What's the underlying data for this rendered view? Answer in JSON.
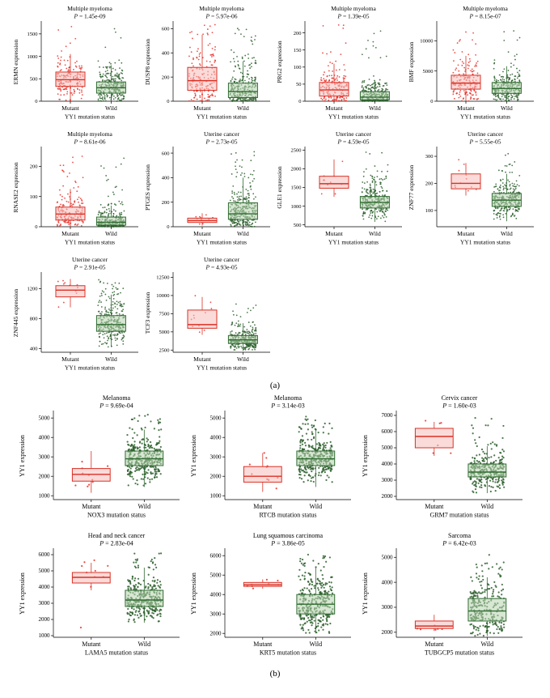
{
  "figure": {
    "panels": {
      "a": {
        "label": "(a)"
      },
      "b": {
        "label": "(b)"
      }
    }
  },
  "colors": {
    "mutant_stroke": "#d93025",
    "mutant_fill": "#f6beba",
    "mutant_point": "#e8312a",
    "wild_stroke": "#2f6b31",
    "wild_fill": "#b7d4ae",
    "wild_point": "#2d5f2d",
    "axis": "#000000"
  },
  "chart_data": [
    {
      "panel": "a",
      "type": "boxplot",
      "title": "Multiple myeloma",
      "p_label": "P = 1.45e-09",
      "ylabel": "ERMN expression",
      "xlabel": "YY1 mutation status",
      "categories": [
        "Mutant",
        "Wild"
      ],
      "ylim": [
        0,
        1750
      ],
      "yticks": [
        0,
        500,
        1000,
        1500
      ],
      "groups": [
        {
          "name": "Mutant",
          "n": 170,
          "low": 0,
          "q1": 330,
          "median": 480,
          "q3": 650,
          "high": 1050,
          "max": 1750
        },
        {
          "name": "Wild",
          "n": 270,
          "low": 0,
          "q1": 180,
          "median": 300,
          "q3": 430,
          "high": 800,
          "max": 1650
        }
      ]
    },
    {
      "panel": "a",
      "type": "boxplot",
      "title": "Multiple myeloma",
      "p_label": "P = 5.97e-06",
      "ylabel": "DUSP8 expression",
      "xlabel": "YY1 mutation status",
      "categories": [
        "Mutant",
        "Wild"
      ],
      "ylim": [
        0,
        650
      ],
      "yticks": [
        0,
        200,
        400,
        600
      ],
      "groups": [
        {
          "name": "Mutant",
          "n": 170,
          "low": 0,
          "q1": 90,
          "median": 170,
          "q3": 280,
          "high": 550,
          "max": 640
        },
        {
          "name": "Wild",
          "n": 270,
          "low": 0,
          "q1": 30,
          "median": 80,
          "q3": 150,
          "high": 330,
          "max": 620
        }
      ]
    },
    {
      "panel": "a",
      "type": "boxplot",
      "title": "Multiple myeloma",
      "p_label": "P = 1.39e-05",
      "ylabel": "PRG2 expression",
      "xlabel": "YY1 mutation status",
      "categories": [
        "Mutant",
        "Wild"
      ],
      "ylim": [
        0,
        230
      ],
      "yticks": [
        0,
        50,
        100,
        150,
        200
      ],
      "groups": [
        {
          "name": "Mutant",
          "n": 170,
          "low": 0,
          "q1": 15,
          "median": 33,
          "q3": 55,
          "high": 110,
          "max": 225
        },
        {
          "name": "Wild",
          "n": 270,
          "low": 0,
          "q1": 4,
          "median": 12,
          "q3": 28,
          "high": 60,
          "max": 215
        }
      ]
    },
    {
      "panel": "a",
      "type": "boxplot",
      "title": "Multiple myeloma",
      "p_label": "P = 8.15e-07",
      "ylabel": "BMF expression",
      "xlabel": "YY1 mutation status",
      "categories": [
        "Mutant",
        "Wild"
      ],
      "ylim": [
        0,
        13000
      ],
      "yticks": [
        0,
        5000,
        10000
      ],
      "groups": [
        {
          "name": "Mutant",
          "n": 170,
          "low": 0,
          "q1": 2000,
          "median": 3000,
          "q3": 4300,
          "high": 7500,
          "max": 12500
        },
        {
          "name": "Wild",
          "n": 270,
          "low": 0,
          "q1": 1300,
          "median": 2100,
          "q3": 3100,
          "high": 5800,
          "max": 12000
        }
      ]
    },
    {
      "panel": "a",
      "type": "boxplot",
      "title": "Multiple myeloma",
      "p_label": "P = 8.61e-06",
      "ylabel": "RNASE2 expression",
      "xlabel": "YY1 mutation status",
      "categories": [
        "Mutant",
        "Wild"
      ],
      "ylim": [
        0,
        260
      ],
      "yticks": [
        0,
        100,
        200
      ],
      "groups": [
        {
          "name": "Mutant",
          "n": 170,
          "low": 0,
          "q1": 22,
          "median": 42,
          "q3": 65,
          "high": 125,
          "max": 250
        },
        {
          "name": "Wild",
          "n": 270,
          "low": 0,
          "q1": 5,
          "median": 15,
          "q3": 32,
          "high": 70,
          "max": 245
        }
      ]
    },
    {
      "panel": "a",
      "type": "boxplot",
      "title": "Uterine cancer",
      "p_label": "P = 2.73e-05",
      "ylabel": "PTGES expression",
      "xlabel": "YY1 mutation status",
      "categories": [
        "Mutant",
        "Wild"
      ],
      "ylim": [
        0,
        640
      ],
      "yticks": [
        0,
        200,
        400,
        600
      ],
      "groups": [
        {
          "name": "Mutant",
          "n": 11,
          "low": 10,
          "q1": 35,
          "median": 50,
          "q3": 70,
          "high": 110,
          "max": 140
        },
        {
          "name": "Wild",
          "n": 300,
          "low": 0,
          "q1": 60,
          "median": 105,
          "q3": 195,
          "high": 400,
          "max": 620
        }
      ]
    },
    {
      "panel": "a",
      "type": "boxplot",
      "title": "Uterine cancer",
      "p_label": "P = 4.59e-05",
      "ylabel": "GLE1 expression",
      "xlabel": "YY1 mutation status",
      "categories": [
        "Mutant",
        "Wild"
      ],
      "ylim": [
        450,
        2550
      ],
      "yticks": [
        500,
        1000,
        1500,
        2000,
        2500
      ],
      "groups": [
        {
          "name": "Mutant",
          "n": 11,
          "low": 1250,
          "q1": 1480,
          "median": 1600,
          "q3": 1800,
          "high": 2250,
          "max": 2400
        },
        {
          "name": "Wild",
          "n": 300,
          "low": 580,
          "q1": 950,
          "median": 1100,
          "q3": 1260,
          "high": 1700,
          "max": 2450
        }
      ]
    },
    {
      "panel": "a",
      "type": "boxplot",
      "title": "Uterine cancer",
      "p_label": "P = 5.55e-05",
      "ylabel": "ZNF77 expression",
      "xlabel": "YY1 mutation status",
      "categories": [
        "Mutant",
        "Wild"
      ],
      "ylim": [
        40,
        330
      ],
      "yticks": [
        100,
        200,
        300
      ],
      "groups": [
        {
          "name": "Mutant",
          "n": 11,
          "low": 155,
          "q1": 180,
          "median": 200,
          "q3": 235,
          "high": 275,
          "max": 290
        },
        {
          "name": "Wild",
          "n": 300,
          "low": 60,
          "q1": 115,
          "median": 138,
          "q3": 163,
          "high": 235,
          "max": 320
        }
      ]
    },
    {
      "panel": "a",
      "type": "boxplot",
      "title": "Uterine cancer",
      "p_label": "P = 2.91e-05",
      "ylabel": "ZNF445 expression",
      "xlabel": "YY1 mutation status",
      "categories": [
        "Mutant",
        "Wild"
      ],
      "ylim": [
        350,
        1400
      ],
      "yticks": [
        400,
        800,
        1200
      ],
      "groups": [
        {
          "name": "Mutant",
          "n": 11,
          "low": 950,
          "q1": 1090,
          "median": 1180,
          "q3": 1240,
          "high": 1330,
          "max": 1350
        },
        {
          "name": "Wild",
          "n": 300,
          "low": 420,
          "q1": 630,
          "median": 720,
          "q3": 840,
          "high": 1120,
          "max": 1320
        }
      ]
    },
    {
      "panel": "a",
      "type": "boxplot",
      "title": "Uterine cancer",
      "p_label": "P = 4.93e-05",
      "ylabel": "TCF3 expression",
      "xlabel": "YY1 mutation status",
      "categories": [
        "Mutant",
        "Wild"
      ],
      "ylim": [
        2200,
        13000
      ],
      "yticks": [
        2500,
        5000,
        7500,
        10000,
        12500
      ],
      "groups": [
        {
          "name": "Mutant",
          "n": 11,
          "low": 4600,
          "q1": 5500,
          "median": 6000,
          "q3": 8000,
          "high": 9800,
          "max": 12500
        },
        {
          "name": "Wild",
          "n": 300,
          "low": 2400,
          "q1": 3400,
          "median": 3900,
          "q3": 4500,
          "high": 6200,
          "max": 9500
        }
      ]
    },
    {
      "panel": "b",
      "type": "boxplot",
      "title": "Melanoma",
      "p_label": "P = 9.69e-04",
      "ylabel": "YY1 expression",
      "xlabel": "NOX3 mutation status",
      "categories": [
        "Mutant",
        "Wild"
      ],
      "ylim": [
        800,
        5300
      ],
      "yticks": [
        1000,
        2000,
        3000,
        4000,
        5000
      ],
      "groups": [
        {
          "name": "Mutant",
          "n": 10,
          "low": 1150,
          "q1": 1750,
          "median": 2100,
          "q3": 2400,
          "high": 3300,
          "max": 3400
        },
        {
          "name": "Wild",
          "n": 340,
          "low": 1450,
          "q1": 2550,
          "median": 2900,
          "q3": 3300,
          "high": 4400,
          "max": 5200
        }
      ]
    },
    {
      "panel": "b",
      "type": "boxplot",
      "title": "Melanoma",
      "p_label": "P = 3.14e-03",
      "ylabel": "YY1 expression",
      "xlabel": "RTCB mutation status",
      "categories": [
        "Mutant",
        "Wild"
      ],
      "ylim": [
        800,
        5300
      ],
      "yticks": [
        1000,
        2000,
        3000,
        4000,
        5000
      ],
      "groups": [
        {
          "name": "Mutant",
          "n": 10,
          "low": 1200,
          "q1": 1700,
          "median": 2000,
          "q3": 2500,
          "high": 3200,
          "max": 3300
        },
        {
          "name": "Wild",
          "n": 340,
          "low": 1450,
          "q1": 2550,
          "median": 2900,
          "q3": 3300,
          "high": 4400,
          "max": 5200
        }
      ]
    },
    {
      "panel": "b",
      "type": "boxplot",
      "title": "Cervix cancer",
      "p_label": "P = 1.60e-03",
      "ylabel": "YY1 expression",
      "xlabel": "GRM7 mutation status",
      "categories": [
        "Mutant",
        "Wild"
      ],
      "ylim": [
        1800,
        7200
      ],
      "yticks": [
        2000,
        3000,
        4000,
        5000,
        6000,
        7000
      ],
      "groups": [
        {
          "name": "Mutant",
          "n": 6,
          "low": 4500,
          "q1": 5000,
          "median": 5700,
          "q3": 6200,
          "high": 6600,
          "max": 6700
        },
        {
          "name": "Wild",
          "n": 280,
          "low": 2200,
          "q1": 3200,
          "median": 3500,
          "q3": 4000,
          "high": 5100,
          "max": 7000
        }
      ]
    },
    {
      "panel": "b",
      "type": "boxplot",
      "title": "Head and neck cancer",
      "p_label": "P = 2.83e-04",
      "ylabel": "YY1 expression",
      "xlabel": "LAMA5 mutation status",
      "categories": [
        "Mutant",
        "Wild"
      ],
      "ylim": [
        900,
        6300
      ],
      "yticks": [
        1000,
        2000,
        3000,
        4000,
        5000,
        6000
      ],
      "groups": [
        {
          "name": "Mutant",
          "n": 9,
          "low": 3800,
          "q1": 4250,
          "median": 4600,
          "q3": 4900,
          "high": 5500,
          "max": 5800,
          "extra": [
            1500
          ]
        },
        {
          "name": "Wild",
          "n": 330,
          "low": 1800,
          "q1": 2800,
          "median": 3200,
          "q3": 3800,
          "high": 5200,
          "max": 6100
        }
      ]
    },
    {
      "panel": "b",
      "type": "boxplot",
      "title": "Lung squamous carcinoma",
      "p_label": "P = 3.86e-05",
      "ylabel": "YY1 expression",
      "xlabel": "KRT5 mutation status",
      "categories": [
        "Mutant",
        "Wild"
      ],
      "ylim": [
        1800,
        6300
      ],
      "yticks": [
        2000,
        3000,
        4000,
        5000,
        6000
      ],
      "groups": [
        {
          "name": "Mutant",
          "n": 9,
          "low": 4300,
          "q1": 4420,
          "median": 4500,
          "q3": 4620,
          "high": 4780,
          "max": 4800
        },
        {
          "name": "Wild",
          "n": 330,
          "low": 2000,
          "q1": 3000,
          "median": 3500,
          "q3": 4000,
          "high": 5400,
          "max": 6200
        }
      ]
    },
    {
      "panel": "b",
      "type": "boxplot",
      "title": "Sarcoma",
      "p_label": "P = 6.42e-03",
      "ylabel": "YY1 expression",
      "xlabel": "TUBGCP5 mutation status",
      "categories": [
        "Mutant",
        "Wild"
      ],
      "ylim": [
        1800,
        5300
      ],
      "yticks": [
        2000,
        3000,
        4000,
        5000
      ],
      "groups": [
        {
          "name": "Mutant",
          "n": 6,
          "low": 2050,
          "q1": 2150,
          "median": 2250,
          "q3": 2450,
          "high": 2700,
          "max": 2750
        },
        {
          "name": "Wild",
          "n": 260,
          "low": 1850,
          "q1": 2450,
          "median": 2850,
          "q3": 3350,
          "high": 4200,
          "max": 5100
        }
      ]
    }
  ]
}
